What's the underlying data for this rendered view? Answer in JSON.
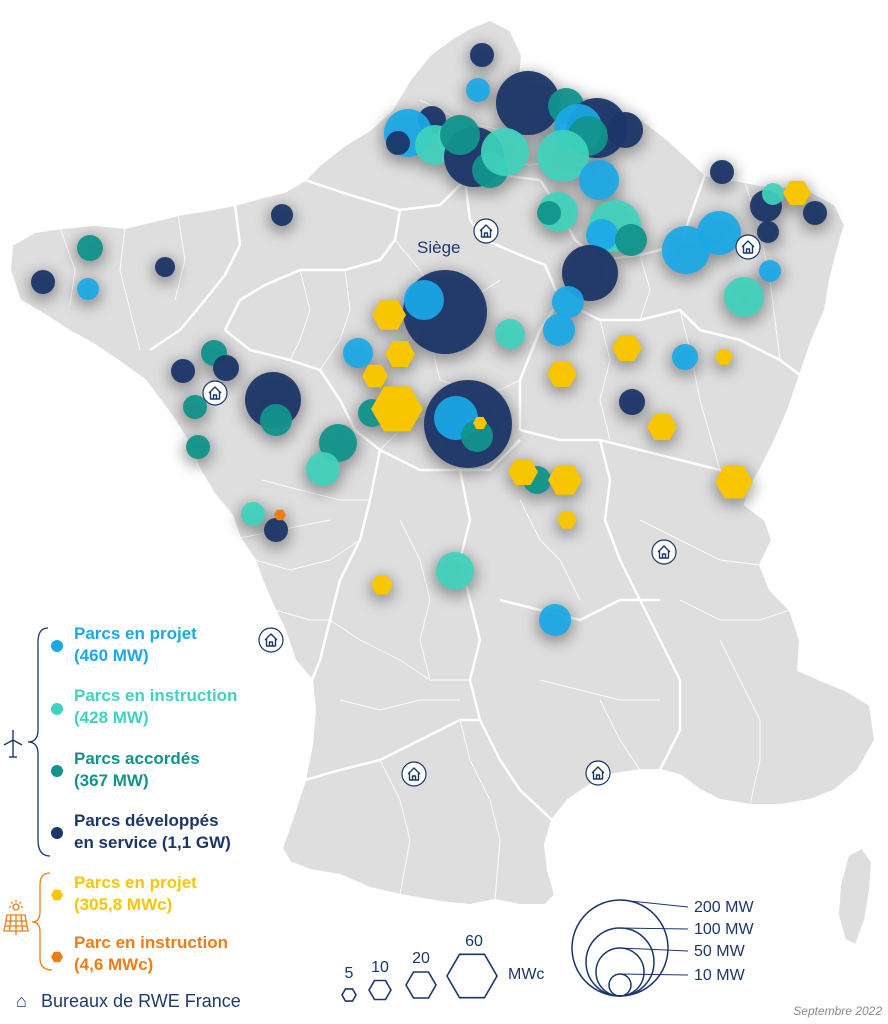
{
  "map": {
    "siege_label": "Siège",
    "date_note": "Septembre 2022"
  },
  "colors": {
    "wind_projet": "#1aa9e8",
    "wind_instruction": "#3fd3bd",
    "wind_accordes": "#12938c",
    "wind_service": "#1b3668",
    "solar_projet": "#f7c600",
    "solar_instruction": "#f07d14",
    "land": "#dedede",
    "borders": "#ffffff"
  },
  "legend": {
    "wind_icon": "wind-turbine-icon",
    "solar_icon": "solar-panel-icon",
    "wind": [
      {
        "line1": "Parcs en projet",
        "line2": "(460 MW)",
        "color": "#1aa9e8"
      },
      {
        "line1": "Parcs en instruction",
        "line2": "(428 MW)",
        "color": "#3fd3bd"
      },
      {
        "line1": "Parcs accordés",
        "line2": "(367 MW)",
        "color": "#12938c"
      },
      {
        "line1": "Parcs développés",
        "line2": "en service (1,1 GW)",
        "color": "#1b3668"
      }
    ],
    "solar": [
      {
        "line1": "Parcs en projet",
        "line2": "(305,8 MWc)",
        "color": "#f7c600"
      },
      {
        "line1": "Parc en instruction",
        "line2": "(4,6 MWc)",
        "color": "#f07d14"
      }
    ],
    "offices": "Bureaux de RWE France"
  },
  "size_legend": {
    "hexagons": {
      "labels": [
        "5",
        "10",
        "20",
        "60"
      ],
      "values": [
        5,
        10,
        20,
        60
      ],
      "unit": "MWc"
    },
    "circles": {
      "labels": [
        "200 MW",
        "100 MW",
        "50 MW",
        "10 MW"
      ],
      "values": [
        200,
        100,
        50,
        10
      ]
    }
  }
}
